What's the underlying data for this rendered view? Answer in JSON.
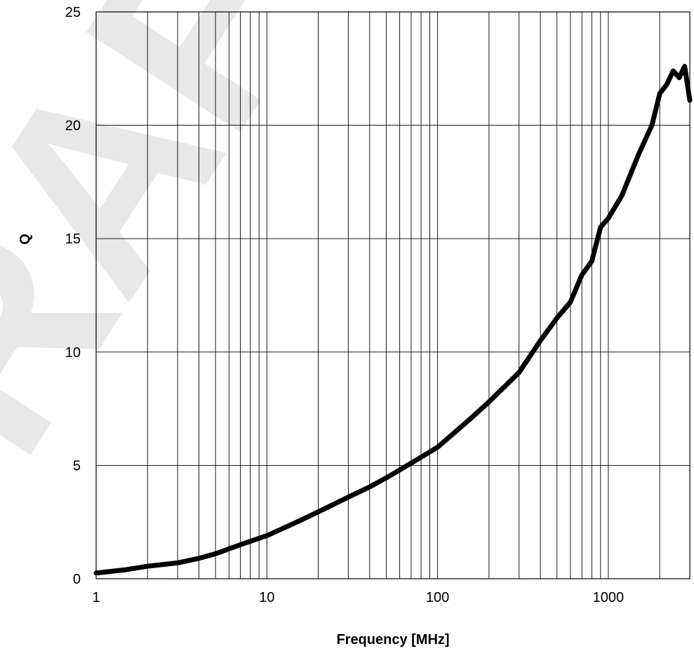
{
  "watermark": "DRAFT",
  "chart_data": {
    "type": "line",
    "title": "",
    "xlabel": "Frequency [MHz]",
    "ylabel": "Q",
    "x_scale": "log",
    "xlim": [
      1,
      3000
    ],
    "ylim": [
      0,
      25
    ],
    "x_ticks": [
      1,
      10,
      100,
      1000
    ],
    "x_tick_labels": [
      "1",
      "10",
      "100",
      "1000"
    ],
    "y_ticks": [
      0,
      5,
      10,
      15,
      20,
      25
    ],
    "y_tick_labels": [
      "0",
      "5",
      "10",
      "15",
      "20",
      "25"
    ],
    "grid": true,
    "series": [
      {
        "color": "#000000",
        "x": [
          1,
          1.5,
          2,
          3,
          4,
          5,
          7,
          10,
          15,
          20,
          30,
          40,
          50,
          70,
          100,
          150,
          200,
          300,
          400,
          500,
          600,
          700,
          800,
          900,
          1000,
          1200,
          1500,
          1800,
          2000,
          2200,
          2400,
          2600,
          2800,
          3000
        ],
        "y": [
          0.25,
          0.4,
          0.55,
          0.7,
          0.9,
          1.1,
          1.5,
          1.9,
          2.5,
          2.95,
          3.6,
          4.05,
          4.45,
          5.1,
          5.8,
          6.95,
          7.8,
          9.1,
          10.5,
          11.5,
          12.2,
          13.4,
          14.0,
          15.5,
          15.9,
          16.9,
          18.7,
          20.0,
          21.4,
          21.8,
          22.4,
          22.1,
          22.6,
          21.1
        ]
      }
    ]
  }
}
